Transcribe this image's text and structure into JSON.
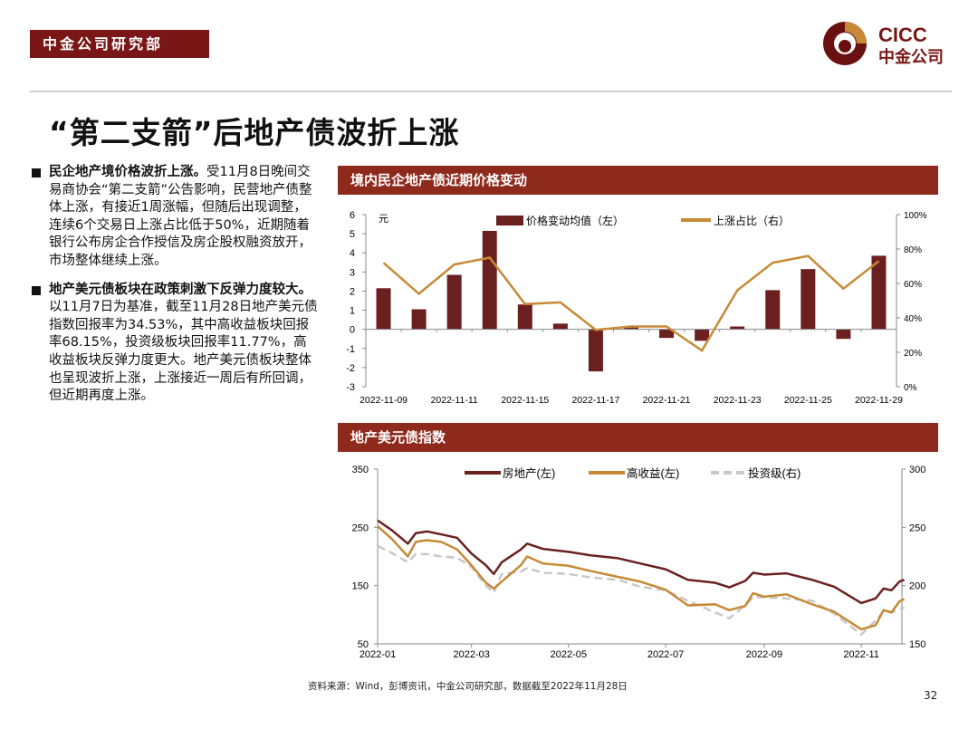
{
  "header": {
    "dept": "中金公司研究部",
    "logo_text_en": "CICC",
    "logo_text_cn": "中金公司",
    "brand_color": "#7a1616",
    "accent_color": "#c68a37"
  },
  "title": "“第二支箭”后地产债波折上涨",
  "bullets": [
    {
      "lead": "民企地产境价格波折上涨。",
      "text": "受11月8日晚间交易商协会“第二支箭”公告影响，民营地产债整体上涨，有接近1周涨幅，但随后出现调整，连续6个交易日上涨占比低于50%，近期随着银行公布房企合作授信及房企股权融资放开，市场整体继续上涨。"
    },
    {
      "lead": "地产美元债板块在政策刺激下反弹力度较大。",
      "text": "以11月7日为基准，截至11月28日地产美元债指数回报率为34.53%，其中高收益板块回报率68.15%，投资级板块回报率11.77%，高收益板块反弹力度更大。地产美元债板块整体也呈现波折上涨，上涨接近一周后有所回调，但近期再度上涨。"
    }
  ],
  "chart_data": [
    {
      "type": "bar",
      "title": "境内民企地产债近期价格变动",
      "unit_label": "元",
      "categories": [
        "2022-11-09",
        "2022-11-10",
        "2022-11-11",
        "2022-11-14",
        "2022-11-15",
        "2022-11-16",
        "2022-11-17",
        "2022-11-18",
        "2022-11-21",
        "2022-11-22",
        "2022-11-23",
        "2022-11-24",
        "2022-11-25",
        "2022-11-28",
        "2022-11-29"
      ],
      "tick_labels": [
        "2022-11-09",
        "2022-11-11",
        "2022-11-15",
        "2022-11-17",
        "2022-11-21",
        "2022-11-23",
        "2022-11-25",
        "2022-11-29"
      ],
      "series": [
        {
          "name": "价格变动均值（左）",
          "type": "bar",
          "axis": "left",
          "color": "#6b2020",
          "values": [
            2.15,
            1.05,
            2.85,
            5.15,
            1.3,
            0.3,
            -2.2,
            0.1,
            -0.45,
            -0.6,
            0.15,
            2.05,
            3.15,
            -0.5,
            3.85
          ]
        },
        {
          "name": "上涨占比（右）",
          "type": "line",
          "axis": "right",
          "color": "#c68a37",
          "values": [
            72,
            54,
            71,
            75,
            48,
            49,
            33,
            35,
            35,
            21,
            56,
            72,
            76,
            57,
            73
          ]
        }
      ],
      "ylim_left": [
        -3,
        6
      ],
      "yticks_left": [
        "6",
        "5",
        "4",
        "3",
        "2",
        "1",
        "0",
        "-1",
        "-2",
        "-3"
      ],
      "ylim_right": [
        0,
        100
      ],
      "yticks_right": [
        "100%",
        "80%",
        "60%",
        "40%",
        "20%",
        "0%"
      ],
      "legend": "top"
    },
    {
      "type": "line",
      "title": "地产美元债指数",
      "dates": [
        "2022-01-01",
        "2022-01-10",
        "2022-01-20",
        "2022-01-25",
        "2022-02-01",
        "2022-02-10",
        "2022-02-20",
        "2022-03-01",
        "2022-03-10",
        "2022-03-15",
        "2022-03-20",
        "2022-04-01",
        "2022-04-05",
        "2022-04-15",
        "2022-05-01",
        "2022-05-15",
        "2022-06-01",
        "2022-06-15",
        "2022-07-01",
        "2022-07-15",
        "2022-08-01",
        "2022-08-10",
        "2022-08-20",
        "2022-08-25",
        "2022-09-01",
        "2022-09-15",
        "2022-10-01",
        "2022-10-15",
        "2022-11-01",
        "2022-11-10",
        "2022-11-15",
        "2022-11-20",
        "2022-11-25",
        "2022-11-28"
      ],
      "tick_labels": [
        "2022-01",
        "2022-03",
        "2022-05",
        "2022-07",
        "2022-09",
        "2022-11"
      ],
      "series": [
        {
          "name": "房地产(左)",
          "axis": "left",
          "color": "#6b2020",
          "dash": false,
          "values": [
            262,
            245,
            222,
            240,
            243,
            238,
            232,
            205,
            185,
            170,
            190,
            212,
            222,
            213,
            208,
            202,
            197,
            188,
            178,
            160,
            155,
            147,
            158,
            172,
            169,
            171,
            160,
            148,
            120,
            128,
            145,
            142,
            157,
            160
          ]
        },
        {
          "name": "高收益(左)",
          "axis": "left",
          "color": "#c68a37",
          "dash": false,
          "values": [
            252,
            230,
            200,
            225,
            228,
            225,
            212,
            185,
            155,
            145,
            157,
            185,
            200,
            188,
            184,
            175,
            165,
            157,
            143,
            116,
            118,
            108,
            115,
            137,
            131,
            135,
            118,
            105,
            75,
            82,
            108,
            104,
            123,
            127
          ]
        },
        {
          "name": "投资级(右)",
          "axis": "right",
          "color": "#c8c8c8",
          "dash": true,
          "values": [
            234,
            228,
            220,
            227,
            227,
            225,
            224,
            216,
            200,
            194,
            210,
            212,
            215,
            211,
            210,
            207,
            205,
            199,
            196,
            187,
            177,
            172,
            183,
            190,
            190,
            189,
            187,
            176,
            158,
            170,
            178,
            177,
            180,
            181
          ]
        }
      ],
      "ylim_left": [
        50,
        350
      ],
      "yticks_left": [
        "350",
        "250",
        "150",
        "50"
      ],
      "ylim_right": [
        150,
        300
      ],
      "yticks_right": [
        "300",
        "250",
        "200",
        "150"
      ],
      "legend": "top"
    }
  ],
  "footer": {
    "source": "资料来源：Wind，彭博资讯，中金公司研究部，数据截至2022年11月28日",
    "page": "32"
  }
}
